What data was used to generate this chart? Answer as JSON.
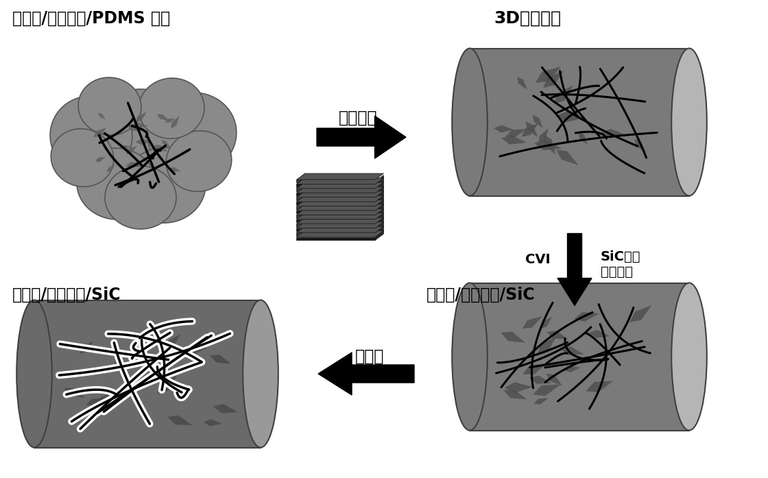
{
  "bg_color": "#ffffff",
  "label_top_left": "石墨烯/碳纳米管/PDMS 浆料",
  "label_top_right": "3D立方阵列",
  "label_arrow_top": "堆积浆料",
  "label_cvi": "CVI",
  "label_sic_growth": "SiC基体\n原位生长",
  "label_bot_left": "石墨烯/碳纳米管/SiC",
  "label_bot_right": "石墨烯/碳纳米管/SiC",
  "label_arrow_bot": "致密化"
}
